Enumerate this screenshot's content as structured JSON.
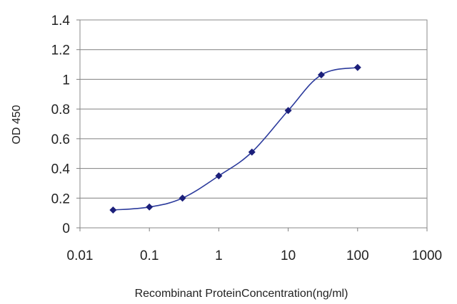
{
  "chart_data": {
    "type": "line",
    "title": "",
    "xlabel": "Recombinant ProteinConcentration(ng/ml)",
    "ylabel": "OD 450",
    "xscale": "log",
    "xlim": [
      0.01,
      1000
    ],
    "ylim": [
      0,
      1.4
    ],
    "grid": "horizontal",
    "xticks": [
      "0.01",
      "0.1",
      "1",
      "10",
      "100",
      "1000"
    ],
    "yticks": [
      "0",
      "0.2",
      "0.4",
      "0.6",
      "0.8",
      "1",
      "1.2",
      "1.4"
    ],
    "xtick_values": [
      0.01,
      0.1,
      1,
      10,
      100,
      1000
    ],
    "ytick_values": [
      0,
      0.2,
      0.4,
      0.6,
      0.8,
      1,
      1.2,
      1.4
    ],
    "series": [
      {
        "x": [
          0.03,
          0.1,
          0.3,
          1,
          3,
          10,
          30,
          100
        ],
        "y": [
          0.12,
          0.14,
          0.2,
          0.35,
          0.51,
          0.79,
          1.03,
          1.08
        ],
        "color": "#2b3a9c",
        "marker": "diamond",
        "marker_color": "#1b1f7a"
      }
    ]
  }
}
